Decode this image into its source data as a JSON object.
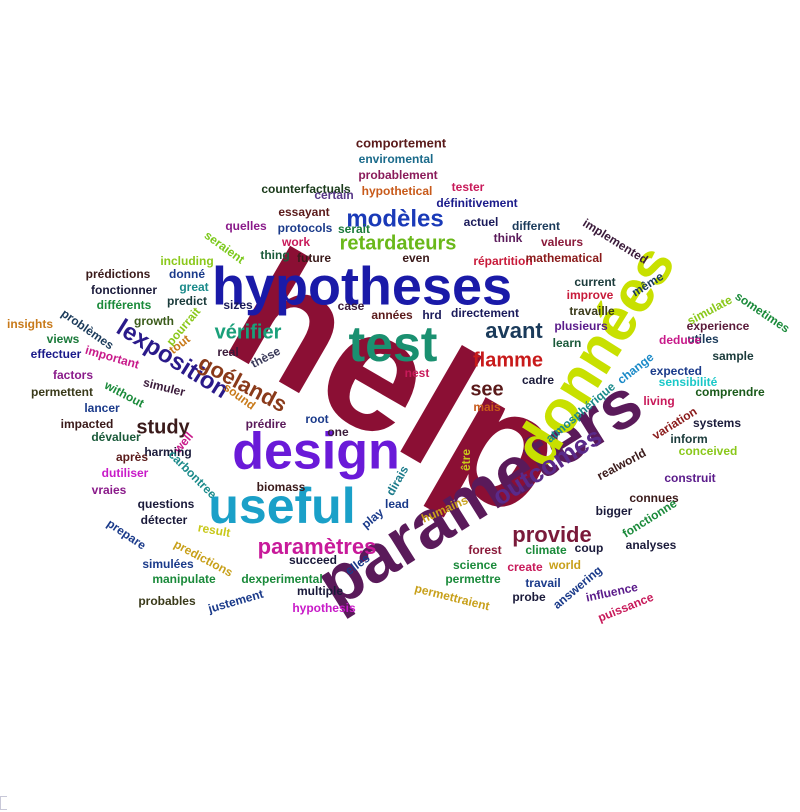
{
  "word_cloud": {
    "words": [
      {
        "text": "help",
        "color": "#8b0f34"
      },
      {
        "text": "parameters",
        "color": "#5a1a5a"
      },
      {
        "text": "données",
        "color": "#c8e000"
      },
      {
        "text": "hypotheses",
        "color": "#1a1aa8"
      },
      {
        "text": "design",
        "color": "#6a1ad8"
      },
      {
        "text": "useful",
        "color": "#1aa0c8"
      },
      {
        "text": "test",
        "color": "#1a9070"
      },
      {
        "text": "outcomes",
        "color": "#5a2a8a"
      },
      {
        "text": "lexposition",
        "color": "#2a1a8a"
      },
      {
        "text": "goélands",
        "color": "#8a3a1a"
      },
      {
        "text": "paramètres",
        "color": "#c81a9a"
      },
      {
        "text": "modèles",
        "color": "#1a3ab8"
      },
      {
        "text": "retardateurs",
        "color": "#6ab81a"
      },
      {
        "text": "vérifier",
        "color": "#1aa07a"
      },
      {
        "text": "study",
        "color": "#3a1a1a"
      },
      {
        "text": "provide",
        "color": "#7a1a3a"
      },
      {
        "text": "flamme",
        "color": "#c81a1a"
      },
      {
        "text": "avant",
        "color": "#1a3a5a"
      },
      {
        "text": "see",
        "color": "#5a1a1a"
      },
      {
        "text": "comportement",
        "color": "#5a1a1a"
      },
      {
        "text": "enviromental",
        "color": "#1a6a8a"
      },
      {
        "text": "probablement",
        "color": "#8a1a5a"
      },
      {
        "text": "hypothetical",
        "color": "#c85a1a"
      },
      {
        "text": "tester",
        "color": "#c81a5a"
      },
      {
        "text": "counterfactuals",
        "color": "#1a3a1a"
      },
      {
        "text": "certain",
        "color": "#5a3a8a"
      },
      {
        "text": "définitivement",
        "color": "#1a1a8a"
      },
      {
        "text": "essayant",
        "color": "#5a1a1a"
      },
      {
        "text": "actuel",
        "color": "#1a1a5a"
      },
      {
        "text": "different",
        "color": "#1a3a5a"
      },
      {
        "text": "quelles",
        "color": "#8a1a8a"
      },
      {
        "text": "protocols",
        "color": "#1a3a8a"
      },
      {
        "text": "serait",
        "color": "#1a7a3a"
      },
      {
        "text": "think",
        "color": "#5a1a5a"
      },
      {
        "text": "valeurs",
        "color": "#8a1a3a"
      },
      {
        "text": "seraient",
        "color": "#7ac81a"
      },
      {
        "text": "thing",
        "color": "#1a5a3a"
      },
      {
        "text": "work",
        "color": "#c81a5a"
      },
      {
        "text": "répartition",
        "color": "#c81a3a"
      },
      {
        "text": "future",
        "color": "#3a1a1a"
      },
      {
        "text": "even",
        "color": "#3a1a1a"
      },
      {
        "text": "mathematical",
        "color": "#8a1a1a"
      },
      {
        "text": "implemented",
        "color": "#3a1a3a"
      },
      {
        "text": "including",
        "color": "#8ac81a"
      },
      {
        "text": "prédictions",
        "color": "#3a1a1a"
      },
      {
        "text": "donné",
        "color": "#1a3a8a"
      },
      {
        "text": "great",
        "color": "#1a8a8a"
      },
      {
        "text": "fonctionner",
        "color": "#1a1a3a"
      },
      {
        "text": "predict",
        "color": "#1a3a3a"
      },
      {
        "text": "current",
        "color": "#1a3a3a"
      },
      {
        "text": "même",
        "color": "#1a3a5a"
      },
      {
        "text": "improve",
        "color": "#c81a3a"
      },
      {
        "text": "différents",
        "color": "#1a8a3a"
      },
      {
        "text": "sizes",
        "color": "#1a1a5a"
      },
      {
        "text": "case",
        "color": "#3a1a3a"
      },
      {
        "text": "années",
        "color": "#5a1a1a"
      },
      {
        "text": "hrd",
        "color": "#1a1a5a"
      },
      {
        "text": "directement",
        "color": "#1a1a5a"
      },
      {
        "text": "travaille",
        "color": "#3a3a1a"
      },
      {
        "text": "simulate",
        "color": "#8ac81a"
      },
      {
        "text": "sometimes",
        "color": "#1a8a3a"
      },
      {
        "text": "insights",
        "color": "#c87a1a"
      },
      {
        "text": "problèmes",
        "color": "#1a3a5a"
      },
      {
        "text": "growth",
        "color": "#3a5a1a"
      },
      {
        "text": "pourrait",
        "color": "#8ac81a"
      },
      {
        "text": "plusieurs",
        "color": "#5a1a8a"
      },
      {
        "text": "experience",
        "color": "#5a1a3a"
      },
      {
        "text": "views",
        "color": "#1a7a3a"
      },
      {
        "text": "tout",
        "color": "#c87a1a"
      },
      {
        "text": "real",
        "color": "#3a1a3a"
      },
      {
        "text": "thèse",
        "color": "#3a3a5a"
      },
      {
        "text": "learn",
        "color": "#1a5a3a"
      },
      {
        "text": "utiles",
        "color": "#1a3a5a"
      },
      {
        "text": "effectuer",
        "color": "#1a1a8a"
      },
      {
        "text": "important",
        "color": "#c81a8a"
      },
      {
        "text": "deduce",
        "color": "#c81a8a"
      },
      {
        "text": "sample",
        "color": "#1a3a3a"
      },
      {
        "text": "factors",
        "color": "#8a1a8a"
      },
      {
        "text": "nest",
        "color": "#c81a5a"
      },
      {
        "text": "change",
        "color": "#1a8ac8"
      },
      {
        "text": "expected",
        "color": "#1a3a8a"
      },
      {
        "text": "permettent",
        "color": "#3a3a1a"
      },
      {
        "text": "without",
        "color": "#1a8a3a"
      },
      {
        "text": "simuler",
        "color": "#3a1a3a"
      },
      {
        "text": "sound",
        "color": "#c87a1a"
      },
      {
        "text": "cadre",
        "color": "#1a1a3a"
      },
      {
        "text": "atmosphérique",
        "color": "#1a8a8a"
      },
      {
        "text": "sensibilité",
        "color": "#1ac8c8"
      },
      {
        "text": "comprendre",
        "color": "#1a5a1a"
      },
      {
        "text": "lancer",
        "color": "#1a3a8a"
      },
      {
        "text": "living",
        "color": "#c81a5a"
      },
      {
        "text": "mais",
        "color": "#c85a1a"
      },
      {
        "text": "variation",
        "color": "#8a1a1a"
      },
      {
        "text": "systems",
        "color": "#1a1a3a"
      },
      {
        "text": "impacted",
        "color": "#3a1a1a"
      },
      {
        "text": "prédire",
        "color": "#5a1a5a"
      },
      {
        "text": "root",
        "color": "#1a3a8a"
      },
      {
        "text": "one",
        "color": "#3a1a3a"
      },
      {
        "text": "well",
        "color": "#c81a8a"
      },
      {
        "text": "dévaluer",
        "color": "#1a5a3a"
      },
      {
        "text": "harming",
        "color": "#1a1a3a"
      },
      {
        "text": "inform",
        "color": "#1a3a3a"
      },
      {
        "text": "après",
        "color": "#5a1a1a"
      },
      {
        "text": "carbontree",
        "color": "#1a8a8a"
      },
      {
        "text": "conceived",
        "color": "#8ac81a"
      },
      {
        "text": "dutiliser",
        "color": "#c81ac8"
      },
      {
        "text": "être",
        "color": "#c8c81a"
      },
      {
        "text": "realworld",
        "color": "#3a1a1a"
      },
      {
        "text": "construit",
        "color": "#5a1a8a"
      },
      {
        "text": "vraies",
        "color": "#8a1a8a"
      },
      {
        "text": "biomass",
        "color": "#3a1a1a"
      },
      {
        "text": "dirais",
        "color": "#1a7a8a"
      },
      {
        "text": "connues",
        "color": "#3a1a1a"
      },
      {
        "text": "questions",
        "color": "#1a1a3a"
      },
      {
        "text": "lead",
        "color": "#1a3a8a"
      },
      {
        "text": "humains",
        "color": "#c8a01a"
      },
      {
        "text": "bigger",
        "color": "#1a1a3a"
      },
      {
        "text": "détecter",
        "color": "#1a1a3a"
      },
      {
        "text": "play",
        "color": "#1a3a8a"
      },
      {
        "text": "fonctionne",
        "color": "#1a8a3a"
      },
      {
        "text": "prepare",
        "color": "#1a3a8a"
      },
      {
        "text": "result",
        "color": "#c8c81a"
      },
      {
        "text": "forest",
        "color": "#8a1a3a"
      },
      {
        "text": "coup",
        "color": "#1a1a3a"
      },
      {
        "text": "analyses",
        "color": "#1a1a3a"
      },
      {
        "text": "simulées",
        "color": "#1a3a8a"
      },
      {
        "text": "predictions",
        "color": "#c8a01a"
      },
      {
        "text": "succeed",
        "color": "#1a1a3a"
      },
      {
        "text": "elles",
        "color": "#1a3a8a"
      },
      {
        "text": "climate",
        "color": "#1a8a3a"
      },
      {
        "text": "world",
        "color": "#c8a01a"
      },
      {
        "text": "science",
        "color": "#1a8a3a"
      },
      {
        "text": "create",
        "color": "#c81a5a"
      },
      {
        "text": "manipulate",
        "color": "#1a8a3a"
      },
      {
        "text": "dexperimental",
        "color": "#1a8a3a"
      },
      {
        "text": "multiple",
        "color": "#1a1a3a"
      },
      {
        "text": "permettre",
        "color": "#1a8a3a"
      },
      {
        "text": "travail",
        "color": "#1a3a8a"
      },
      {
        "text": "answering",
        "color": "#1a3a8a"
      },
      {
        "text": "probables",
        "color": "#3a3a1a"
      },
      {
        "text": "justement",
        "color": "#1a3a8a"
      },
      {
        "text": "hypothesis",
        "color": "#c81ac8"
      },
      {
        "text": "permettraient",
        "color": "#c8a01a"
      },
      {
        "text": "probe",
        "color": "#1a1a3a"
      },
      {
        "text": "influence",
        "color": "#5a1a8a"
      },
      {
        "text": "puissance",
        "color": "#c81a5a"
      }
    ]
  }
}
